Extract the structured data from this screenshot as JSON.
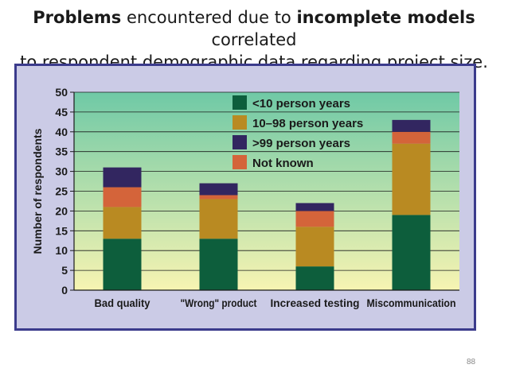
{
  "slide": {
    "title_parts": [
      {
        "text": "Problems",
        "bold": true
      },
      {
        "text": " encountered due to ",
        "bold": false
      },
      {
        "text": "incomplete models",
        "bold": true
      },
      {
        "text": " correlated",
        "bold": false
      }
    ],
    "title_line2": "to respondent demographic data regarding project size.",
    "page_number": "88"
  },
  "colors": {
    "lt10": "#0d5e3c",
    "mid": "#b98a22",
    "gt99": "#322660",
    "unknown": "#d4643a",
    "bg_top": "#6fc9a6",
    "bg_bottom": "#f7f4b2",
    "frame": "#3b3b8c",
    "frame_bg": "#cbcbe6"
  },
  "chart_data": {
    "type": "bar",
    "stacked": true,
    "title": "",
    "xlabel": "",
    "ylabel": "Number of respondents",
    "ylim": [
      0,
      50
    ],
    "yticks": [
      0,
      5,
      10,
      15,
      20,
      25,
      30,
      35,
      40,
      45,
      50
    ],
    "grid": true,
    "legend_position": "top-center",
    "categories": [
      "Bad quality",
      "\"Wrong\" product",
      "Increased testing",
      "Miscommunication"
    ],
    "series": [
      {
        "name": "<10 person years",
        "color_key": "lt10",
        "values": [
          13,
          13,
          6,
          19
        ]
      },
      {
        "name": "10–98 person years",
        "color_key": "mid",
        "values": [
          8,
          10,
          10,
          18
        ]
      },
      {
        "name": "Not known",
        "color_key": "unknown",
        "values": [
          5,
          1,
          4,
          3
        ]
      },
      {
        "name": ">99 person years",
        "color_key": "gt99",
        "values": [
          5,
          3,
          2,
          3
        ]
      }
    ],
    "legend_order": [
      "<10 person years",
      "10–98 person years",
      ">99 person years",
      "Not known"
    ]
  }
}
